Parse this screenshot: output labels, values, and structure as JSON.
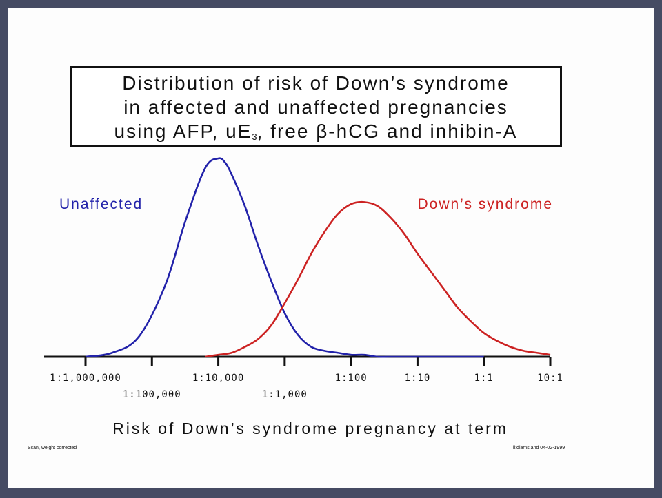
{
  "chart_data": {
    "type": "line",
    "title_lines": [
      "Distribution of risk of Down’s syndrome",
      "in affected and unaffected pregnancies"
    ],
    "title_line3_parts": [
      "using AFP, uE",
      "3",
      ", free β-hCG and inhibin-A"
    ],
    "xlabel": "Risk of Down’s syndrome pregnancy at term",
    "x_scale": "log10 risk (odds)",
    "xlim": [
      -6,
      1
    ],
    "ticks": [
      {
        "value": -6,
        "label": "1:1,000,000",
        "row": 1
      },
      {
        "value": -5,
        "label": "1:100,000",
        "row": 2
      },
      {
        "value": -4,
        "label": "1:10,000",
        "row": 1
      },
      {
        "value": -3,
        "label": "1:1,000",
        "row": 2
      },
      {
        "value": -2,
        "label": "1:100",
        "row": 1
      },
      {
        "value": -1,
        "label": "1:10",
        "row": 1
      },
      {
        "value": 0,
        "label": "1:1",
        "row": 1
      },
      {
        "value": 1,
        "label": "10:1",
        "row": 1
      }
    ],
    "series": [
      {
        "name": "Unaffected",
        "color": "#2222aa",
        "x": [
          -6.0,
          -5.6,
          -5.2,
          -4.8,
          -4.5,
          -4.2,
          -4.0,
          -3.9,
          -3.8,
          -3.6,
          -3.4,
          -3.2,
          -3.0,
          -2.8,
          -2.6,
          -2.4,
          -2.2,
          -2.0,
          -1.8,
          -1.6,
          -1.4,
          -1.2,
          -1.0,
          -0.8,
          -0.6,
          -0.4,
          -0.2,
          0.0
        ],
        "y": [
          0.0,
          0.02,
          0.1,
          0.36,
          0.68,
          0.95,
          1.0,
          0.98,
          0.92,
          0.76,
          0.56,
          0.38,
          0.22,
          0.11,
          0.05,
          0.03,
          0.02,
          0.01,
          0.01,
          0.0,
          0.0,
          0.0,
          0.0,
          0.0,
          0.0,
          0.0,
          0.0,
          0.0
        ]
      },
      {
        "name": "Down’s syndrome",
        "color": "#cc2222",
        "x": [
          -4.2,
          -4.0,
          -3.8,
          -3.6,
          -3.4,
          -3.2,
          -3.0,
          -2.8,
          -2.6,
          -2.4,
          -2.2,
          -2.0,
          -1.8,
          -1.6,
          -1.4,
          -1.2,
          -1.0,
          -0.8,
          -0.6,
          -0.4,
          -0.2,
          0.0,
          0.2,
          0.4,
          0.6,
          0.8,
          1.0
        ],
        "y": [
          0.0,
          0.01,
          0.02,
          0.05,
          0.09,
          0.16,
          0.27,
          0.39,
          0.52,
          0.63,
          0.72,
          0.77,
          0.78,
          0.76,
          0.7,
          0.62,
          0.52,
          0.43,
          0.34,
          0.25,
          0.18,
          0.12,
          0.08,
          0.05,
          0.03,
          0.02,
          0.01
        ]
      }
    ],
    "grid": false,
    "legend": "labels beside curves (Unaffected upper-left, Down’s syndrome upper-right)"
  },
  "footnotes": {
    "left": "Scan, weight corrected",
    "right": "ll:diams.and 04-02-1999"
  }
}
